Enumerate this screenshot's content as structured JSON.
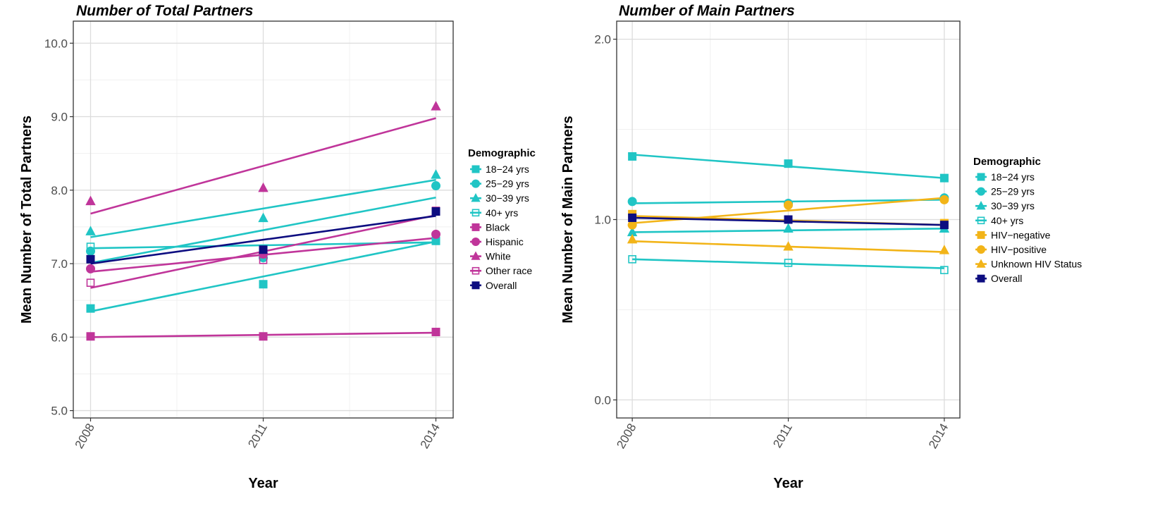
{
  "chart_data": [
    {
      "type": "line",
      "title": "Number of Total Partners",
      "xlabel": "Year",
      "ylabel": "Mean Number of Total Partners",
      "x": [
        2008,
        2011,
        2014
      ],
      "x_ticks": [
        "2008",
        "2011",
        "2014"
      ],
      "ylim": [
        4.9,
        10.3
      ],
      "y_ticks": [
        "5.0",
        "6.0",
        "7.0",
        "8.0",
        "9.0",
        "10.0"
      ],
      "grid": true,
      "legend_title": "Demographic",
      "legend_position": "right",
      "series": [
        {
          "name": "18−24 yrs",
          "color": "#20c5c5",
          "shape": "square",
          "values": [
            6.39,
            6.72,
            7.31
          ],
          "fit": [
            6.35,
            7.3
          ]
        },
        {
          "name": "25−29 yrs",
          "color": "#20c5c5",
          "shape": "circle",
          "values": [
            7.17,
            7.08,
            8.06
          ],
          "fit": [
            7.01,
            7.9
          ]
        },
        {
          "name": "30−39 yrs",
          "color": "#20c5c5",
          "shape": "triangle",
          "values": [
            7.44,
            7.62,
            8.21
          ],
          "fit": [
            7.36,
            8.14
          ]
        },
        {
          "name": "40+ yrs",
          "color": "#20c5c5",
          "shape": "open-square",
          "values": [
            7.23,
            7.11,
            7.31
          ],
          "fit": [
            7.21,
            7.29
          ]
        },
        {
          "name": "Black",
          "color": "#c0359a",
          "shape": "square",
          "values": [
            6.01,
            6.01,
            6.07
          ],
          "fit": [
            6.0,
            6.06
          ]
        },
        {
          "name": "Hispanic",
          "color": "#c0359a",
          "shape": "circle",
          "values": [
            6.93,
            7.13,
            7.4
          ],
          "fit": [
            6.89,
            7.35
          ]
        },
        {
          "name": "White",
          "color": "#c0359a",
          "shape": "triangle",
          "values": [
            7.85,
            8.03,
            9.14
          ],
          "fit": [
            7.68,
            8.98
          ]
        },
        {
          "name": "Other race",
          "color": "#c0359a",
          "shape": "open-square",
          "values": [
            6.74,
            7.05,
            7.72
          ],
          "fit": [
            6.67,
            7.66
          ]
        },
        {
          "name": "Overall",
          "color": "#0d0d80",
          "shape": "square",
          "values": [
            7.06,
            7.19,
            7.71
          ],
          "fit": [
            7.0,
            7.65
          ]
        }
      ]
    },
    {
      "type": "line",
      "title": "Number of Main Partners",
      "xlabel": "Year",
      "ylabel": "Mean Number of Main Partners",
      "x": [
        2008,
        2011,
        2014
      ],
      "x_ticks": [
        "2008",
        "2011",
        "2014"
      ],
      "ylim": [
        -0.1,
        2.1
      ],
      "y_ticks": [
        "0.0",
        "1.0",
        "2.0"
      ],
      "grid": true,
      "legend_title": "Demographic",
      "legend_position": "right",
      "series": [
        {
          "name": "18−24 yrs",
          "color": "#20c5c5",
          "shape": "square",
          "values": [
            1.35,
            1.31,
            1.23
          ],
          "fit": [
            1.36,
            1.23
          ]
        },
        {
          "name": "25−29 yrs",
          "color": "#20c5c5",
          "shape": "circle",
          "values": [
            1.1,
            1.09,
            1.12
          ],
          "fit": [
            1.09,
            1.11
          ]
        },
        {
          "name": "30−39 yrs",
          "color": "#20c5c5",
          "shape": "triangle",
          "values": [
            0.93,
            0.95,
            0.95
          ],
          "fit": [
            0.93,
            0.95
          ]
        },
        {
          "name": "40+ yrs",
          "color": "#20c5c5",
          "shape": "open-square",
          "values": [
            0.78,
            0.76,
            0.72
          ],
          "fit": [
            0.78,
            0.73
          ]
        },
        {
          "name": "HIV−negative",
          "color": "#f2b418",
          "shape": "square",
          "values": [
            1.03,
            1.0,
            0.98
          ],
          "fit": [
            1.02,
            0.97
          ]
        },
        {
          "name": "HIV−positive",
          "color": "#f2b418",
          "shape": "circle",
          "values": [
            0.97,
            1.08,
            1.11
          ],
          "fit": [
            0.98,
            1.12
          ]
        },
        {
          "name": "Unknown HIV Status",
          "color": "#f2b418",
          "shape": "triangle",
          "values": [
            0.89,
            0.85,
            0.83
          ],
          "fit": [
            0.88,
            0.82
          ]
        },
        {
          "name": "Overall",
          "color": "#0d0d80",
          "shape": "square",
          "values": [
            1.01,
            1.0,
            0.97
          ],
          "fit": [
            1.01,
            0.97
          ]
        }
      ]
    }
  ]
}
